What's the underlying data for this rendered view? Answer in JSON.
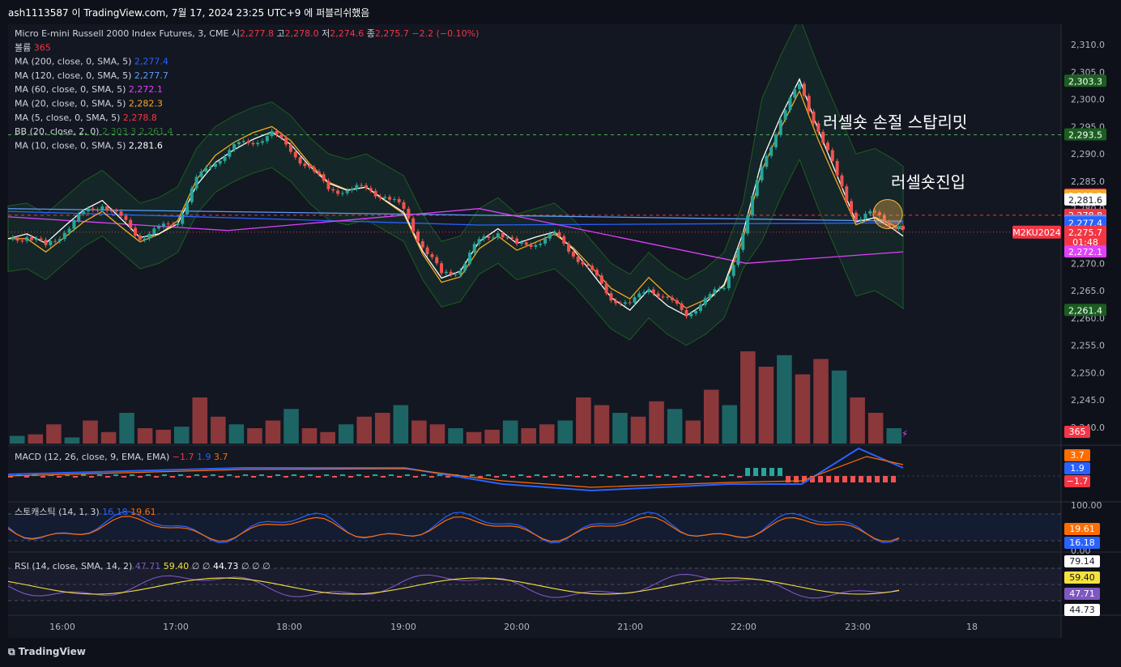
{
  "top_caption": "ash1113587 이 TradingView.com, 7월 17, 2024 23:25 UTC+9 에 퍼블리쉬했음",
  "footer_logo": "TradingView",
  "colors": {
    "up": "#26a69a",
    "down": "#ef5350",
    "ma200": "#2962ff",
    "ma120": "#5b9cf6",
    "ma60": "#e040fb",
    "ma20": "#f7a825",
    "ma5": "#f23645",
    "ma10": "#ffffff",
    "bb": "#1b5e20",
    "macd": "#2962ff",
    "signal": "#ff6d00",
    "stoch_k": "#2962ff",
    "stoch_d": "#ff6d00",
    "rsi": "#7e57c2",
    "rsi_ma": "#f6e23c"
  },
  "legend": {
    "title": "Micro E-mini Russell 2000 Index Futures, 3, CME",
    "o_label": "시",
    "o": "2,277.8",
    "h_label": "고",
    "h": "2,278.0",
    "l_label": "저",
    "l": "2,274.6",
    "c_label": "종",
    "c": "2,275.7",
    "chg": "−2.2 (−0.10%)",
    "vol_label": "볼륨",
    "vol": "365",
    "ma200": "MA (200, close, 0, SMA, 5)",
    "ma200_v": "2,277.4",
    "ma120": "MA (120, close, 0, SMA, 5)",
    "ma120_v": "2,277.7",
    "ma60": "MA (60, close, 0, SMA, 5)",
    "ma60_v": "2,272.1",
    "ma20": "MA (20, close, 0, SMA, 5)",
    "ma20_v": "2,282.3",
    "ma5": "MA (5, close, 0, SMA, 5)",
    "ma5_v": "2,278.8",
    "bb": "BB (20, close, 2, 0)",
    "bb_u": "2,303.3",
    "bb_l": "2,261.4",
    "ma10": "MA (10, close, 0, SMA, 5)",
    "ma10_v": "2,281.6"
  },
  "annotations": {
    "stop": "러셀숏 손절 스탑리밋",
    "entry": "러셀숏진입"
  },
  "chart_data": {
    "type": "candlestick",
    "price_axis": {
      "min": 2240,
      "max": 2310,
      "ticks": [
        "2,310.0",
        "2,305.0",
        "2,300.0",
        "2,295.0",
        "2,290.0",
        "2,285.0",
        "2,280.0",
        "2,275.0",
        "2,270.0",
        "2,265.0",
        "2,260.0",
        "2,255.0",
        "2,250.0",
        "2,245.0",
        "2,240.0"
      ]
    },
    "time_axis": [
      "16:00",
      "17:00",
      "18:00",
      "19:00",
      "20:00",
      "21:00",
      "22:00",
      "23:00",
      "18"
    ],
    "price_labels": [
      {
        "text": "2,303.3",
        "value": 2303.3,
        "color": "#1b5e20"
      },
      {
        "text": "2,293.5",
        "value": 2293.5,
        "color": "#1b5e20"
      },
      {
        "text": "2,282.5",
        "value": 2282.5,
        "color": "#f23645"
      },
      {
        "text": "2,282.3",
        "value": 2282.3,
        "color": "#f7a825"
      },
      {
        "text": "2,281.6",
        "value": 2281.6,
        "color": "#ffffff"
      },
      {
        "text": "2,278.8",
        "value": 2278.8,
        "color": "#f23645"
      },
      {
        "text": "2,277.7",
        "value": 2277.7,
        "color": "#5b9cf6"
      },
      {
        "text": "2,277.4",
        "value": 2277.4,
        "color": "#2962ff"
      },
      {
        "text": "2,275.7",
        "value": 2275.7,
        "color": "#f23645",
        "sub": "01:48"
      },
      {
        "text": "2,272.1",
        "value": 2272.1,
        "color": "#e040fb"
      },
      {
        "text": "2,261.4",
        "value": 2261.4,
        "color": "#1b5e20"
      }
    ],
    "symbol_badge": "M2KU2024",
    "volume_label": "365",
    "dashed_levels": [
      2293.5,
      2278.8
    ],
    "close_path": [
      [
        0,
        2274.5
      ],
      [
        12,
        2275
      ],
      [
        24,
        2273
      ],
      [
        36,
        2276
      ],
      [
        48,
        2279
      ],
      [
        60,
        2281
      ],
      [
        72,
        2278
      ],
      [
        84,
        2275
      ],
      [
        96,
        2276
      ],
      [
        108,
        2278
      ],
      [
        120,
        2285
      ],
      [
        132,
        2289
      ],
      [
        144,
        2291
      ],
      [
        156,
        2292.5
      ],
      [
        168,
        2293.5
      ],
      [
        180,
        2291
      ],
      [
        192,
        2287
      ],
      [
        204,
        2284
      ],
      [
        216,
        2283
      ],
      [
        228,
        2284
      ],
      [
        240,
        2282
      ],
      [
        252,
        2280
      ],
      [
        264,
        2273
      ],
      [
        276,
        2268
      ],
      [
        288,
        2269
      ],
      [
        300,
        2274
      ],
      [
        312,
        2276
      ],
      [
        324,
        2273
      ],
      [
        336,
        2274
      ],
      [
        348,
        2275
      ],
      [
        360,
        2272
      ],
      [
        372,
        2268
      ],
      [
        384,
        2264
      ],
      [
        396,
        2262
      ],
      [
        408,
        2266
      ],
      [
        420,
        2263
      ],
      [
        432,
        2261
      ],
      [
        444,
        2263
      ],
      [
        456,
        2266
      ],
      [
        468,
        2275
      ],
      [
        480,
        2288
      ],
      [
        492,
        2296
      ],
      [
        504,
        2303
      ],
      [
        516,
        2294
      ],
      [
        528,
        2286
      ],
      [
        540,
        2278
      ],
      [
        552,
        2279
      ],
      [
        564,
        2277
      ],
      [
        570,
        2275.7
      ]
    ],
    "volume": [
      10,
      12,
      25,
      8,
      30,
      15,
      40,
      20,
      18,
      22,
      60,
      35,
      25,
      20,
      30,
      45,
      20,
      15,
      25,
      35,
      40,
      50,
      30,
      25,
      20,
      15,
      18,
      30,
      20,
      25,
      30,
      60,
      50,
      40,
      35,
      55,
      45,
      30,
      70,
      50,
      120,
      100,
      115,
      90,
      110,
      95,
      60,
      40,
      20
    ],
    "panes": [
      {
        "name": "MACD",
        "legend": "MACD (12, 26, close, 9, EMA, EMA)",
        "v1": "−1.7",
        "v2": "1.9",
        "v3": "3.7",
        "labels": [
          {
            "text": "3.7",
            "color": "#ff6d00"
          },
          {
            "text": "1.9",
            "color": "#2962ff"
          },
          {
            "text": "−1.7",
            "color": "#f23645"
          }
        ]
      },
      {
        "name": "Stochastic",
        "legend": "스토캐스틱 (14, 1, 3)",
        "v1": "16.18",
        "v2": "19.61",
        "ticks": [
          "100.00",
          "0.00"
        ],
        "labels": [
          {
            "text": "19.61",
            "color": "#ff6d00"
          },
          {
            "text": "16.18",
            "color": "#2962ff"
          }
        ]
      },
      {
        "name": "RSI",
        "legend": "RSI (14, close, SMA, 14, 2)",
        "v1": "47.71",
        "v2": "59.40",
        "v3": "∅",
        "v4": "∅",
        "v5": "44.73",
        "v6": "∅",
        "v7": "∅",
        "v8": "∅",
        "labels": [
          {
            "text": "79.14",
            "color": "#ffffff"
          },
          {
            "text": "59.40",
            "color": "#f6e23c"
          },
          {
            "text": "47.71",
            "color": "#7e57c2"
          },
          {
            "text": "44.73",
            "color": "#ffffff"
          }
        ]
      }
    ]
  }
}
